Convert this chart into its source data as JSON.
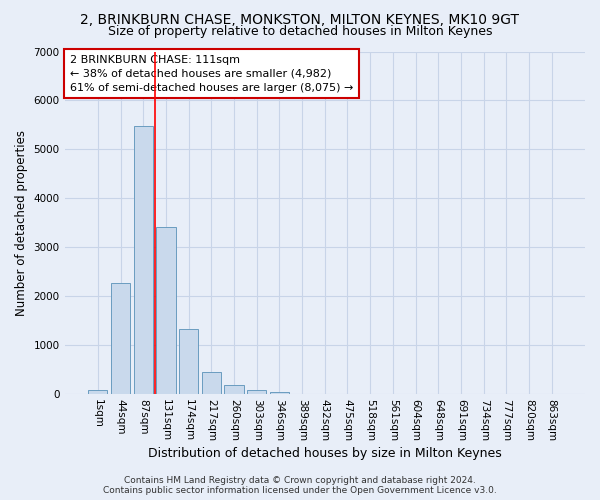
{
  "title1": "2, BRINKBURN CHASE, MONKSTON, MILTON KEYNES, MK10 9GT",
  "title2": "Size of property relative to detached houses in Milton Keynes",
  "xlabel": "Distribution of detached houses by size in Milton Keynes",
  "ylabel": "Number of detached properties",
  "footer": "Contains HM Land Registry data © Crown copyright and database right 2024.\nContains public sector information licensed under the Open Government Licence v3.0.",
  "bar_labels": [
    "1sqm",
    "44sqm",
    "87sqm",
    "131sqm",
    "174sqm",
    "217sqm",
    "260sqm",
    "303sqm",
    "346sqm",
    "389sqm",
    "432sqm",
    "475sqm",
    "518sqm",
    "561sqm",
    "604sqm",
    "648sqm",
    "691sqm",
    "734sqm",
    "777sqm",
    "820sqm",
    "863sqm"
  ],
  "bar_values": [
    100,
    2280,
    5480,
    3420,
    1340,
    460,
    195,
    90,
    60,
    0,
    0,
    0,
    0,
    0,
    0,
    0,
    0,
    0,
    0,
    0,
    0
  ],
  "bar_color": "#c9d9ec",
  "bar_edge_color": "#6a9cc0",
  "red_line_x": 2.5,
  "annotation_text": "2 BRINKBURN CHASE: 111sqm\n← 38% of detached houses are smaller (4,982)\n61% of semi-detached houses are larger (8,075) →",
  "annotation_box_color": "#ffffff",
  "annotation_box_edge": "#cc0000",
  "ylim": [
    0,
    7000
  ],
  "yticks": [
    0,
    1000,
    2000,
    3000,
    4000,
    5000,
    6000,
    7000
  ],
  "grid_color": "#c8d4e8",
  "background_color": "#e8eef8",
  "title1_fontsize": 10,
  "title2_fontsize": 9,
  "xlabel_fontsize": 9,
  "ylabel_fontsize": 8.5,
  "tick_fontsize": 7.5,
  "annotation_fontsize": 8,
  "footer_fontsize": 6.5
}
